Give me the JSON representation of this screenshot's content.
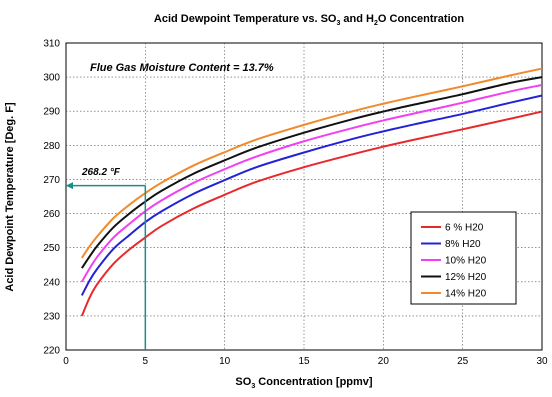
{
  "chart_data": {
    "type": "line",
    "title_parts": {
      "pre": "Acid Dewpoint Temperature vs. SO",
      "sub1": "3",
      "mid": " and H",
      "sub2": "2",
      "post": "O Concentration"
    },
    "xlabel_parts": {
      "pre": "SO",
      "sub": "3",
      "post": " Concentration [ppmv]"
    },
    "ylabel": "Acid Dewpoint Temperature [Deg. F]",
    "xlim": [
      0,
      30
    ],
    "ylim": [
      220,
      310
    ],
    "xticks": [
      0,
      5,
      10,
      15,
      20,
      25,
      30
    ],
    "yticks": [
      220,
      230,
      240,
      250,
      260,
      270,
      280,
      290,
      300,
      310
    ],
    "grid": true,
    "legend_placement": "lower-right",
    "x": [
      1,
      1.5,
      2,
      3,
      4,
      5,
      6,
      8,
      10,
      12,
      15,
      18,
      20,
      22,
      25,
      28,
      30
    ],
    "series": [
      {
        "name": "6 % H20",
        "color": "#e8292c",
        "values": [
          230.0,
          235.5,
          239.5,
          245.3,
          249.5,
          253.0,
          256.3,
          261.4,
          265.5,
          269.3,
          273.6,
          277.3,
          279.6,
          281.7,
          284.7,
          287.8,
          289.9
        ]
      },
      {
        "name": "8% H20",
        "color": "#2323d6",
        "values": [
          236.0,
          240.5,
          244.0,
          249.7,
          253.7,
          257.5,
          260.6,
          265.7,
          269.8,
          273.6,
          277.9,
          281.8,
          284.1,
          286.2,
          289.2,
          292.5,
          294.6
        ]
      },
      {
        "name": "10% H20",
        "color": "#f040f0",
        "values": [
          240.0,
          244.0,
          247.5,
          253.0,
          257.0,
          260.7,
          263.8,
          268.9,
          273.0,
          276.7,
          281.2,
          285.0,
          287.3,
          289.4,
          292.5,
          295.8,
          297.7
        ]
      },
      {
        "name": "12% H20",
        "color": "#111111",
        "values": [
          244.0,
          247.5,
          250.7,
          256.0,
          260.0,
          263.5,
          266.6,
          271.6,
          275.6,
          279.3,
          283.7,
          287.6,
          289.9,
          292.0,
          295.0,
          298.3,
          300.0
        ]
      },
      {
        "name": "14% H20",
        "color": "#f08a2a",
        "values": [
          247.0,
          250.5,
          253.5,
          258.7,
          262.6,
          266.0,
          269.0,
          274.0,
          278.0,
          281.7,
          286.0,
          289.9,
          292.2,
          294.3,
          297.3,
          300.5,
          302.5
        ]
      }
    ],
    "annotations": {
      "moisture_text": "Flue Gas Moisture Content = 13.7%",
      "marker_prefix": "268.2 ",
      "marker_unit": "°F",
      "marker_x": 5,
      "marker_y": 268.2,
      "marker_color": "#1a8f8a"
    }
  }
}
